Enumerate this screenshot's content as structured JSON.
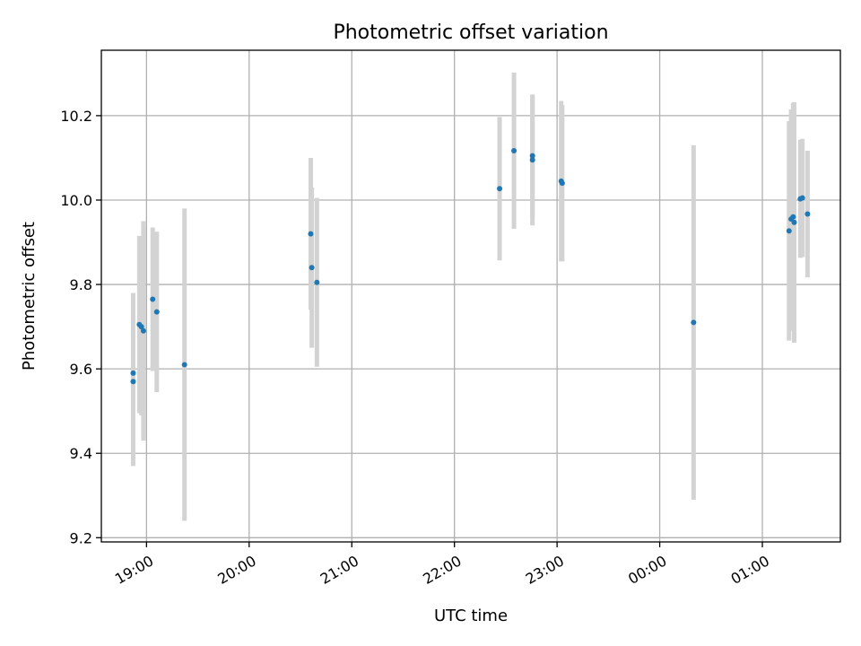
{
  "chart_data": {
    "type": "scatter",
    "title": "Photometric offset variation",
    "xlabel": "UTC time",
    "ylabel": "Photometric offset",
    "x_unit": "UTC time (hours after 00:00 of first night; >24 means next day)",
    "x_ticks": [
      {
        "value": 19,
        "label": "19:00"
      },
      {
        "value": 20,
        "label": "20:00"
      },
      {
        "value": 21,
        "label": "21:00"
      },
      {
        "value": 22,
        "label": "22:00"
      },
      {
        "value": 23,
        "label": "23:00"
      },
      {
        "value": 24,
        "label": "00:00"
      },
      {
        "value": 25,
        "label": "01:00"
      }
    ],
    "y_ticks": [
      {
        "value": 9.2,
        "label": "9.2"
      },
      {
        "value": 9.4,
        "label": "9.4"
      },
      {
        "value": 9.6,
        "label": "9.6"
      },
      {
        "value": 9.8,
        "label": "9.8"
      },
      {
        "value": 10.0,
        "label": "10.0"
      },
      {
        "value": 10.2,
        "label": "10.2"
      }
    ],
    "xlim": [
      18.56,
      25.76
    ],
    "ylim": [
      9.19,
      10.355
    ],
    "grid": true,
    "point_color": "#1f77b4",
    "errorbar_color": "#d3d3d3",
    "points": [
      {
        "x": 18.87,
        "y": 9.59,
        "err": 0.19
      },
      {
        "x": 18.87,
        "y": 9.57,
        "err": 0.2
      },
      {
        "x": 18.93,
        "y": 9.705,
        "err": 0.21
      },
      {
        "x": 18.95,
        "y": 9.7,
        "err": 0.21
      },
      {
        "x": 18.97,
        "y": 9.69,
        "err": 0.26
      },
      {
        "x": 19.06,
        "y": 9.765,
        "err": 0.17
      },
      {
        "x": 19.1,
        "y": 9.735,
        "err": 0.19
      },
      {
        "x": 19.37,
        "y": 9.61,
        "err": 0.37
      },
      {
        "x": 20.6,
        "y": 9.92,
        "err": 0.18
      },
      {
        "x": 20.61,
        "y": 9.84,
        "err": 0.19
      },
      {
        "x": 20.66,
        "y": 9.805,
        "err": 0.2
      },
      {
        "x": 22.44,
        "y": 10.027,
        "err": 0.17
      },
      {
        "x": 22.58,
        "y": 10.117,
        "err": 0.185
      },
      {
        "x": 22.76,
        "y": 10.095,
        "err": 0.155
      },
      {
        "x": 22.76,
        "y": 10.105,
        "err": 0.145
      },
      {
        "x": 23.04,
        "y": 10.045,
        "err": 0.19
      },
      {
        "x": 23.05,
        "y": 10.04,
        "err": 0.185
      },
      {
        "x": 24.33,
        "y": 9.71,
        "err": 0.42
      },
      {
        "x": 25.26,
        "y": 9.927,
        "err": 0.26
      },
      {
        "x": 25.28,
        "y": 9.955,
        "err": 0.26
      },
      {
        "x": 25.3,
        "y": 9.96,
        "err": 0.27
      },
      {
        "x": 25.31,
        "y": 9.947,
        "err": 0.285
      },
      {
        "x": 25.37,
        "y": 10.003,
        "err": 0.14
      },
      {
        "x": 25.39,
        "y": 10.005,
        "err": 0.14
      },
      {
        "x": 25.44,
        "y": 9.967,
        "err": 0.15
      }
    ]
  }
}
